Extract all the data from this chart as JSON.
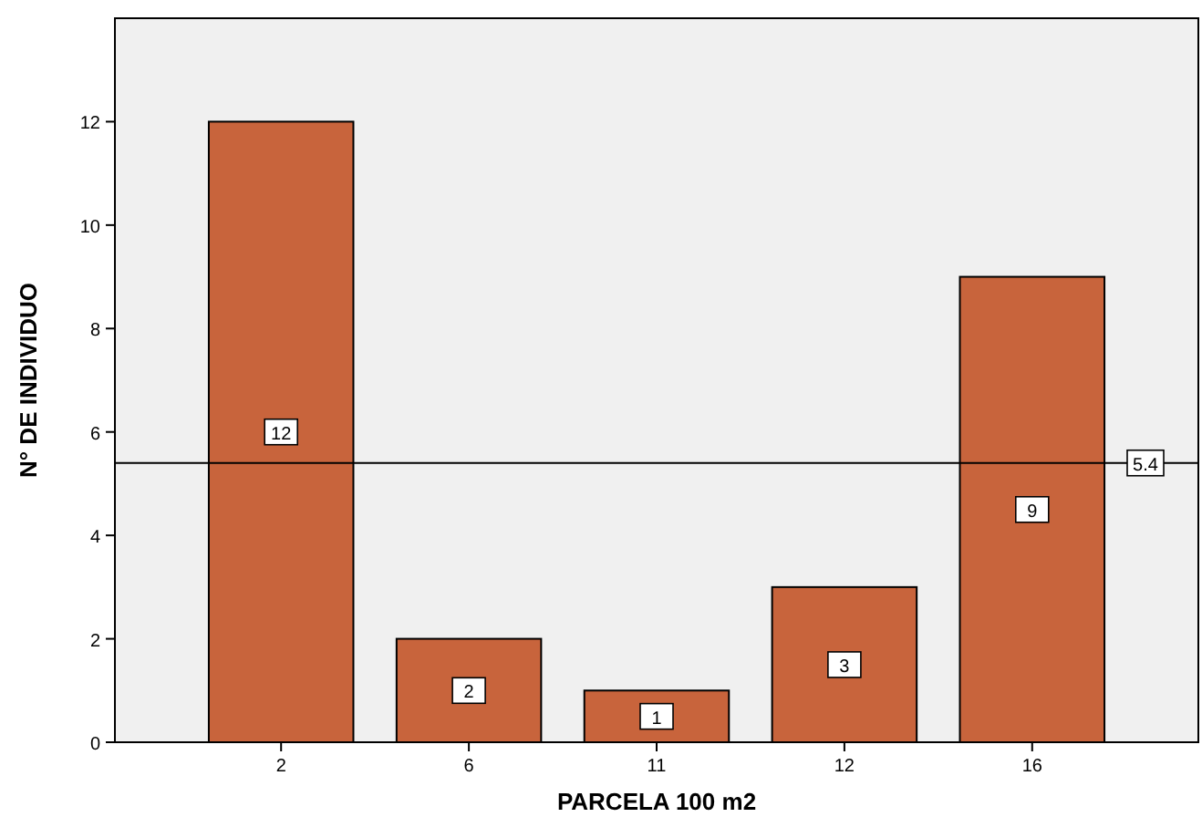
{
  "chart_data": {
    "type": "bar",
    "xlabel": "PARCELA 100 m2",
    "ylabel": "N° DE INDIVIDUO",
    "categories": [
      "2",
      "6",
      "11",
      "12",
      "16"
    ],
    "values": [
      12,
      2,
      1,
      3,
      9
    ],
    "color": "#c8643c",
    "ylim": [
      0,
      14
    ],
    "yticks": [
      0,
      2,
      4,
      6,
      8,
      10,
      12
    ],
    "grid": false,
    "data_labels": true,
    "ref_lines": [
      {
        "axis": "y",
        "value": 5.4,
        "label": "5.4"
      }
    ]
  }
}
